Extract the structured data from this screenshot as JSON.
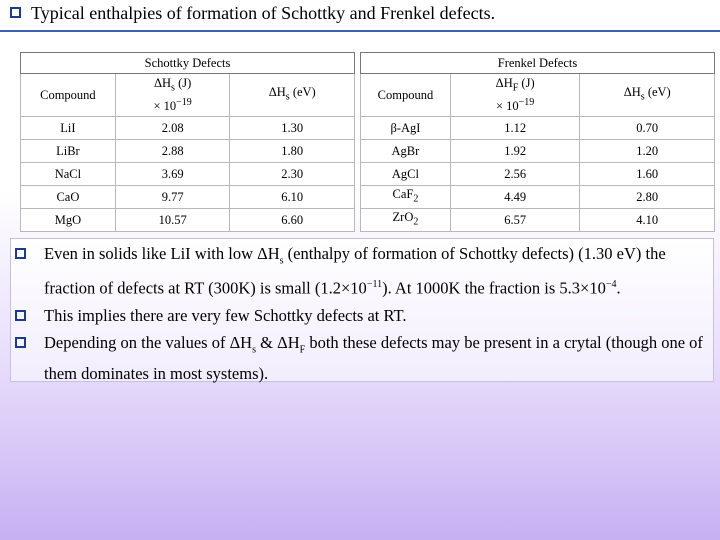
{
  "title": "Typical enthalpies of formation of Schottky and Frenkel defects.",
  "tables": [
    {
      "caption": "Schottky Defects",
      "header": [
        "Compound",
        [
          [
            "ΔH",
            {
              "sub": "s"
            },
            " (J)"
          ],
          [
            "× 10",
            {
              "sup": "−19"
            }
          ]
        ],
        [
          [
            "ΔH",
            {
              "sub": "s"
            },
            " (eV)"
          ]
        ]
      ],
      "rows": [
        [
          "LiI",
          "2.08",
          "1.30"
        ],
        [
          "LiBr",
          "2.88",
          "1.80"
        ],
        [
          "NaCl",
          "3.69",
          "2.30"
        ],
        [
          "CaO",
          "9.77",
          "6.10"
        ],
        [
          "MgO",
          "10.57",
          "6.60"
        ]
      ]
    },
    {
      "caption": "Frenkel Defects",
      "header": [
        "Compound",
        [
          [
            "ΔH",
            {
              "sub": "F"
            },
            " (J)"
          ],
          [
            "× 10",
            {
              "sup": "−19"
            }
          ]
        ],
        [
          [
            "ΔH",
            {
              "sub": "s"
            },
            " (eV)"
          ]
        ]
      ],
      "rows": [
        [
          "β-AgI",
          "1.12",
          "0.70"
        ],
        [
          "AgBr",
          "1.92",
          "1.20"
        ],
        [
          "AgCl",
          "2.56",
          "1.60"
        ],
        [
          [
            [
              "CaF",
              {
                "sub": "2"
              }
            ]
          ],
          "4.49",
          "2.80"
        ],
        [
          [
            [
              "ZrO",
              {
                "sub": "2"
              }
            ]
          ],
          "6.57",
          "4.10"
        ]
      ]
    }
  ],
  "bullets": [
    [
      "Even in solids like LiI with low ΔH",
      {
        "sub": "s"
      },
      " (enthalpy of formation of Schottky defects) (1.30 eV) the fraction of defects at RT (300K) is small (1.2×10",
      {
        "sup": "−11"
      },
      "). At 1000K the fraction is 5.3×10",
      {
        "sup": "−4"
      },
      "."
    ],
    "This implies there are very few Schottky defects at RT.",
    [
      "Depending on the values of ΔH",
      {
        "sub": "s"
      },
      " & ΔH",
      {
        "sub": "F"
      },
      " both these defects may be present in a crytal (though one of them dominates in most systems)."
    ]
  ]
}
